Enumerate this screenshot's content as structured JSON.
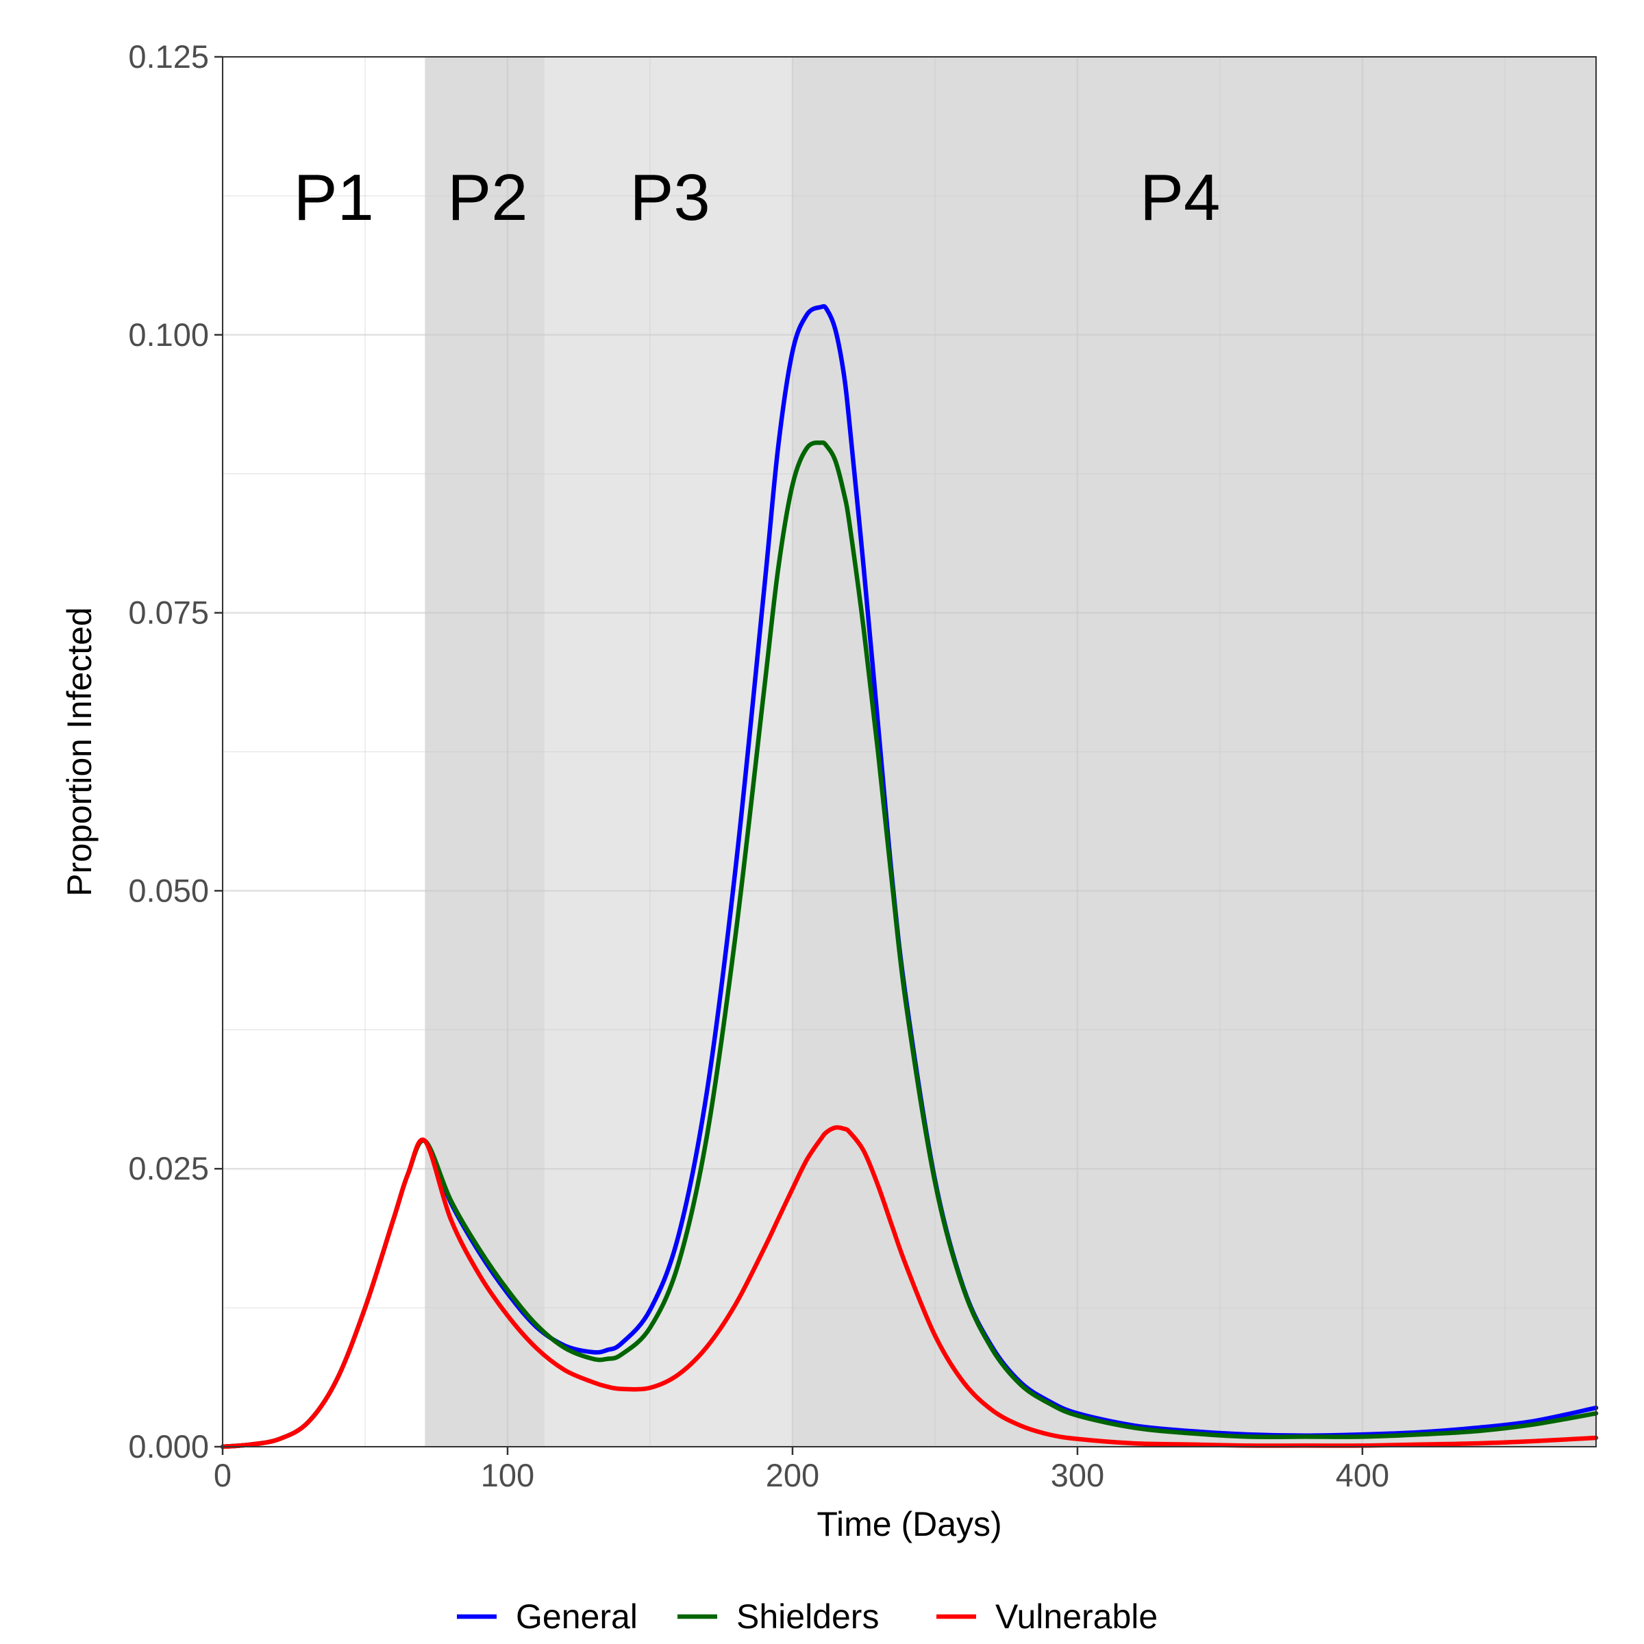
{
  "chart_data": {
    "type": "line",
    "title": "",
    "xlabel": "Time (Days)",
    "ylabel": "Proportion Infected",
    "xlim": [
      0,
      482
    ],
    "ylim": [
      0,
      0.125
    ],
    "x_ticks": [
      0,
      100,
      200,
      300,
      400
    ],
    "x_tick_labels": [
      "0",
      "100",
      "200",
      "300",
      "400"
    ],
    "y_ticks": [
      0,
      0.025,
      0.05,
      0.075,
      0.1,
      0.125
    ],
    "y_tick_labels": [
      "0.000",
      "0.025",
      "0.050",
      "0.075",
      "0.100",
      "0.125"
    ],
    "grid": true,
    "legend_position": "bottom",
    "phases": [
      {
        "label": "P1",
        "start": 0,
        "end": 71,
        "label_x": 39,
        "fill": "#ffffff"
      },
      {
        "label": "P2",
        "start": 71,
        "end": 113,
        "label_x": 93,
        "fill": "#dcdcdc"
      },
      {
        "label": "P3",
        "start": 113,
        "end": 200,
        "label_x": 157,
        "fill": "#e6e6e6"
      },
      {
        "label": "P4",
        "start": 200,
        "end": 482,
        "label_x": 336,
        "fill": "#dcdcdc"
      }
    ],
    "phase_label_y": 0.112,
    "x": [
      0,
      10,
      20,
      30,
      40,
      50,
      60,
      65,
      71,
      80,
      90,
      100,
      110,
      120,
      130,
      135,
      140,
      150,
      160,
      170,
      180,
      190,
      195,
      200,
      205,
      210,
      212,
      215,
      218,
      220,
      225,
      230,
      235,
      240,
      250,
      260,
      270,
      280,
      290,
      300,
      320,
      340,
      360,
      380,
      400,
      420,
      440,
      460,
      482
    ],
    "series": [
      {
        "name": "General",
        "color": "#0000ff",
        "values": [
          0.0,
          0.0002,
          0.0007,
          0.0022,
          0.006,
          0.0125,
          0.0205,
          0.0245,
          0.0275,
          0.022,
          0.0175,
          0.0138,
          0.0108,
          0.0091,
          0.0085,
          0.0087,
          0.0093,
          0.0123,
          0.019,
          0.032,
          0.052,
          0.077,
          0.09,
          0.0985,
          0.1018,
          0.1025,
          0.1023,
          0.1005,
          0.0965,
          0.092,
          0.079,
          0.065,
          0.051,
          0.04,
          0.024,
          0.0143,
          0.009,
          0.0058,
          0.0041,
          0.003,
          0.0019,
          0.0014,
          0.0011,
          0.001,
          0.0011,
          0.0013,
          0.0017,
          0.0023,
          0.0035
        ]
      },
      {
        "name": "Shielders",
        "color": "#006400",
        "values": [
          0.0,
          0.0002,
          0.0007,
          0.0022,
          0.006,
          0.0125,
          0.0205,
          0.0245,
          0.0275,
          0.0222,
          0.0178,
          0.0141,
          0.011,
          0.0089,
          0.0079,
          0.0079,
          0.0083,
          0.0107,
          0.0165,
          0.028,
          0.046,
          0.068,
          0.079,
          0.0865,
          0.0898,
          0.0903,
          0.09,
          0.0887,
          0.0858,
          0.083,
          0.0735,
          0.0625,
          0.0505,
          0.0395,
          0.0238,
          0.0142,
          0.0088,
          0.0056,
          0.0039,
          0.0028,
          0.0017,
          0.0012,
          0.0009,
          0.0009,
          0.0009,
          0.0011,
          0.0014,
          0.002,
          0.003
        ]
      },
      {
        "name": "Vulnerable",
        "color": "#ff0000",
        "values": [
          0.0,
          0.0002,
          0.0007,
          0.0022,
          0.006,
          0.0125,
          0.0205,
          0.0245,
          0.0275,
          0.0205,
          0.0155,
          0.0118,
          0.0089,
          0.0069,
          0.0058,
          0.0054,
          0.0052,
          0.0053,
          0.0065,
          0.009,
          0.0128,
          0.0178,
          0.0205,
          0.0232,
          0.0258,
          0.0277,
          0.0283,
          0.0287,
          0.0286,
          0.0283,
          0.0266,
          0.0235,
          0.0198,
          0.0162,
          0.01,
          0.0058,
          0.0033,
          0.0019,
          0.0011,
          0.0007,
          0.0003,
          0.0002,
          0.0001,
          0.0001,
          0.0001,
          0.0002,
          0.0003,
          0.0005,
          0.0008
        ]
      }
    ]
  }
}
